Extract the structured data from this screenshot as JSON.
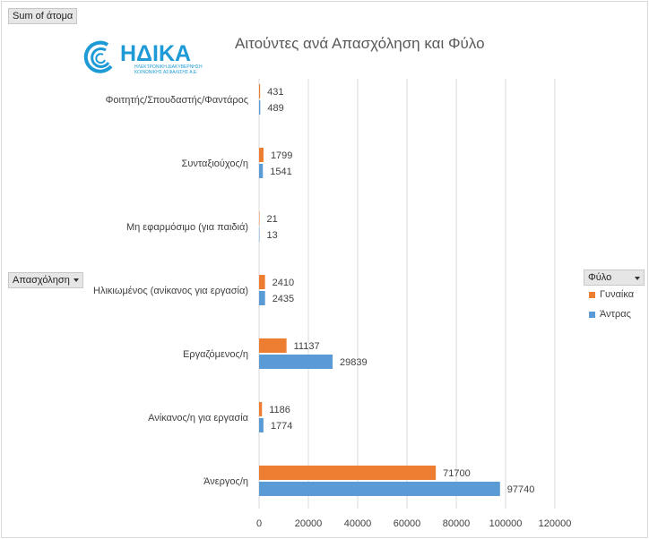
{
  "pivot": {
    "values_field": "Sum of άτομα",
    "axis_field": "Απασχόληση",
    "legend_field": "Φύλο"
  },
  "logo": {
    "name": "ΗΔΙΚΑ",
    "subtitle_line1": "ΗΛΕΚΤΡΟΝΙΚΗ ΔΙΑΚΥΒΕΡΝΗΣΗ",
    "subtitle_line2": "ΚΟΙΝΩΝΙΚΗΣ ΑΣΦΑΛΙΣΗΣ Α.Ε."
  },
  "colors": {
    "women": "#ed7d31",
    "men": "#5b9bd5",
    "grid": "#d9d9d9"
  },
  "chart_data": {
    "type": "bar",
    "orientation": "horizontal",
    "title": "Αιτούντες ανά Απασχόληση και Φύλο",
    "categories": [
      "Φοιτητής/Σπουδαστής/Φαντάρος",
      "Συνταξιούχος/η",
      "Μη εφαρμόσιμο (για παιδιά)",
      "Ηλικιωμένος (ανίκανος για εργασία)",
      "Εργαζόμενος/η",
      "Ανίκανος/η για εργασία",
      "Άνεργος/η"
    ],
    "series": [
      {
        "name": "Γυναίκα",
        "values": [
          431,
          1799,
          21,
          2410,
          11137,
          1186,
          71700
        ]
      },
      {
        "name": "Άντρας",
        "values": [
          489,
          1541,
          13,
          2435,
          29839,
          1774,
          97740
        ]
      }
    ],
    "xlim": [
      0,
      120000
    ],
    "xticks": [
      "0",
      "20000",
      "40000",
      "60000",
      "80000",
      "100000",
      "120000"
    ],
    "legend_position": "right",
    "grid": true
  }
}
